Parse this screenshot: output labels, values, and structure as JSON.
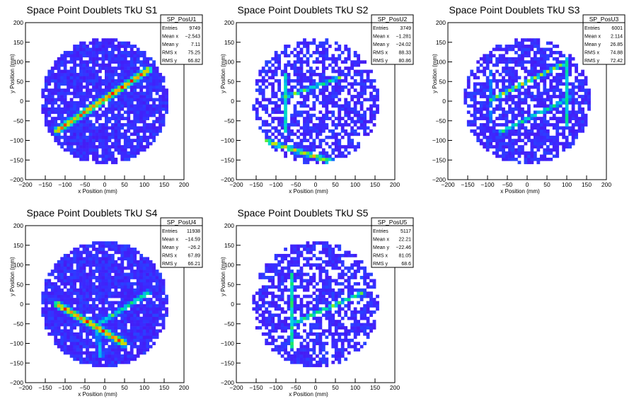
{
  "chart_data": [
    {
      "type": "heatmap",
      "title": "Space Point Doublets TkU S1",
      "xlabel": "x Position (mm)",
      "ylabel": "y Position (mm)",
      "xlim": [
        -200,
        200
      ],
      "ylim": [
        -200,
        200
      ],
      "xticks": [
        -200,
        -150,
        -100,
        -50,
        0,
        50,
        100,
        150,
        200
      ],
      "yticks": [
        -200,
        -150,
        -100,
        -50,
        0,
        50,
        100,
        150,
        200
      ],
      "stats": {
        "name": "SP_PosU1",
        "rows": [
          {
            "label": "Entries",
            "value": "9749"
          },
          {
            "label": "Mean x",
            "value": "−2.543"
          },
          {
            "label": "Mean y",
            "value": "7.11"
          },
          {
            "label": "RMS x",
            "value": "75.25"
          },
          {
            "label": "RMS y",
            "value": "66.82"
          }
        ]
      },
      "pattern": {
        "radius": 160,
        "sparsity": 0.12,
        "seed": 11,
        "lines": [
          {
            "x1": -120,
            "y1": -75,
            "x2": 110,
            "y2": 80,
            "w": 14,
            "peak": 0.9
          }
        ]
      }
    },
    {
      "type": "heatmap",
      "title": "Space Point Doublets TkU S2",
      "xlabel": "x Position (mm)",
      "ylabel": "y Position (mm)",
      "xlim": [
        -200,
        200
      ],
      "ylim": [
        -200,
        200
      ],
      "xticks": [
        -200,
        -150,
        -100,
        -50,
        0,
        50,
        100,
        150,
        200
      ],
      "yticks": [
        -200,
        -150,
        -100,
        -50,
        0,
        50,
        100,
        150,
        200
      ],
      "stats": {
        "name": "SP_PosU2",
        "rows": [
          {
            "label": "Entries",
            "value": "3749"
          },
          {
            "label": "Mean x",
            "value": "−1.281"
          },
          {
            "label": "Mean y",
            "value": "−24.02"
          },
          {
            "label": "RMS x",
            "value": "88.33"
          },
          {
            "label": "RMS y",
            "value": "80.86"
          }
        ]
      },
      "pattern": {
        "radius": 160,
        "sparsity": 0.38,
        "seed": 23,
        "lines": [
          {
            "x1": -130,
            "y1": -100,
            "x2": 60,
            "y2": -160,
            "w": 10,
            "peak": 0.75
          },
          {
            "x1": -80,
            "y1": 10,
            "x2": 60,
            "y2": 60,
            "w": 8,
            "peak": 0.6
          },
          {
            "x1": -75,
            "y1": -80,
            "x2": -75,
            "y2": 70,
            "w": 6,
            "peak": 0.5
          }
        ]
      }
    },
    {
      "type": "heatmap",
      "title": "Space Point Doublets TkU S3",
      "xlabel": "x Position (mm)",
      "ylabel": "y Position (mm)",
      "xticks": [
        -200,
        -150,
        -100,
        -50,
        0,
        50,
        100,
        150,
        200
      ],
      "yticks": [
        -200,
        -150,
        -100,
        -50,
        0,
        50,
        100,
        150,
        200
      ],
      "xlim": [
        -200,
        200
      ],
      "ylim": [
        -200,
        200
      ],
      "stats": {
        "name": "SP_PosU3",
        "rows": [
          {
            "label": "Entries",
            "value": "6001"
          },
          {
            "label": "Mean x",
            "value": "2.114"
          },
          {
            "label": "Mean y",
            "value": "26.85"
          },
          {
            "label": "RMS x",
            "value": "74.88"
          },
          {
            "label": "RMS y",
            "value": "72.42"
          }
        ]
      },
      "pattern": {
        "radius": 160,
        "sparsity": 0.28,
        "seed": 37,
        "lines": [
          {
            "x1": -90,
            "y1": 5,
            "x2": 90,
            "y2": 95,
            "w": 8,
            "peak": 0.7
          },
          {
            "x1": -70,
            "y1": -80,
            "x2": 110,
            "y2": 10,
            "w": 8,
            "peak": 0.55
          },
          {
            "x1": -95,
            "y1": -60,
            "x2": -95,
            "y2": 80,
            "w": 6,
            "peak": 0.45
          },
          {
            "x1": 100,
            "y1": -60,
            "x2": 100,
            "y2": 110,
            "w": 6,
            "peak": 0.45
          }
        ]
      }
    },
    {
      "type": "heatmap",
      "title": "Space Point Doublets TkU S4",
      "xlabel": "x Position (mm)",
      "ylabel": "y Position (mm)",
      "xlim": [
        -200,
        200
      ],
      "ylim": [
        -200,
        200
      ],
      "xticks": [
        -200,
        -150,
        -100,
        -50,
        0,
        50,
        100,
        150,
        200
      ],
      "yticks": [
        -200,
        -150,
        -100,
        -50,
        0,
        50,
        100,
        150,
        200
      ],
      "stats": {
        "name": "SP_PosU4",
        "rows": [
          {
            "label": "Entries",
            "value": "11938"
          },
          {
            "label": "Mean x",
            "value": "−14.59"
          },
          {
            "label": "Mean y",
            "value": "−26.2"
          },
          {
            "label": "RMS x",
            "value": "67.89"
          },
          {
            "label": "RMS y",
            "value": "66.21"
          }
        ]
      },
      "pattern": {
        "radius": 160,
        "sparsity": 0.1,
        "seed": 41,
        "lines": [
          {
            "x1": -120,
            "y1": 0,
            "x2": 50,
            "y2": -100,
            "w": 14,
            "peak": 0.9
          },
          {
            "x1": -30,
            "y1": -60,
            "x2": 110,
            "y2": 30,
            "w": 10,
            "peak": 0.55
          },
          {
            "x1": -20,
            "y1": -60,
            "x2": -10,
            "y2": -130,
            "w": 10,
            "peak": 0.45
          }
        ]
      }
    },
    {
      "type": "heatmap",
      "title": "Space Point Doublets TkU S5",
      "xlabel": "x Position (mm)",
      "ylabel": "y Position (mm)",
      "xlim": [
        -200,
        200
      ],
      "ylim": [
        -200,
        200
      ],
      "xticks": [
        -200,
        -150,
        -100,
        -50,
        0,
        50,
        100,
        150,
        200
      ],
      "yticks": [
        -200,
        -150,
        -100,
        -50,
        0,
        50,
        100,
        150,
        200
      ],
      "stats": {
        "name": "SP_PosU5",
        "rows": [
          {
            "label": "Entries",
            "value": "5117"
          },
          {
            "label": "Mean x",
            "value": "22.21"
          },
          {
            "label": "Mean y",
            "value": "−22.46"
          },
          {
            "label": "RMS x",
            "value": "81.05"
          },
          {
            "label": "RMS y",
            "value": "68.6"
          }
        ]
      },
      "pattern": {
        "radius": 160,
        "sparsity": 0.35,
        "seed": 53,
        "lines": [
          {
            "x1": -60,
            "y1": -50,
            "x2": 120,
            "y2": 30,
            "w": 8,
            "peak": 0.6
          },
          {
            "x1": -60,
            "y1": -110,
            "x2": -60,
            "y2": 80,
            "w": 6,
            "peak": 0.5
          },
          {
            "x1": 120,
            "y1": -60,
            "x2": 120,
            "y2": 70,
            "w": 6,
            "peak": 0.4
          }
        ]
      }
    }
  ]
}
